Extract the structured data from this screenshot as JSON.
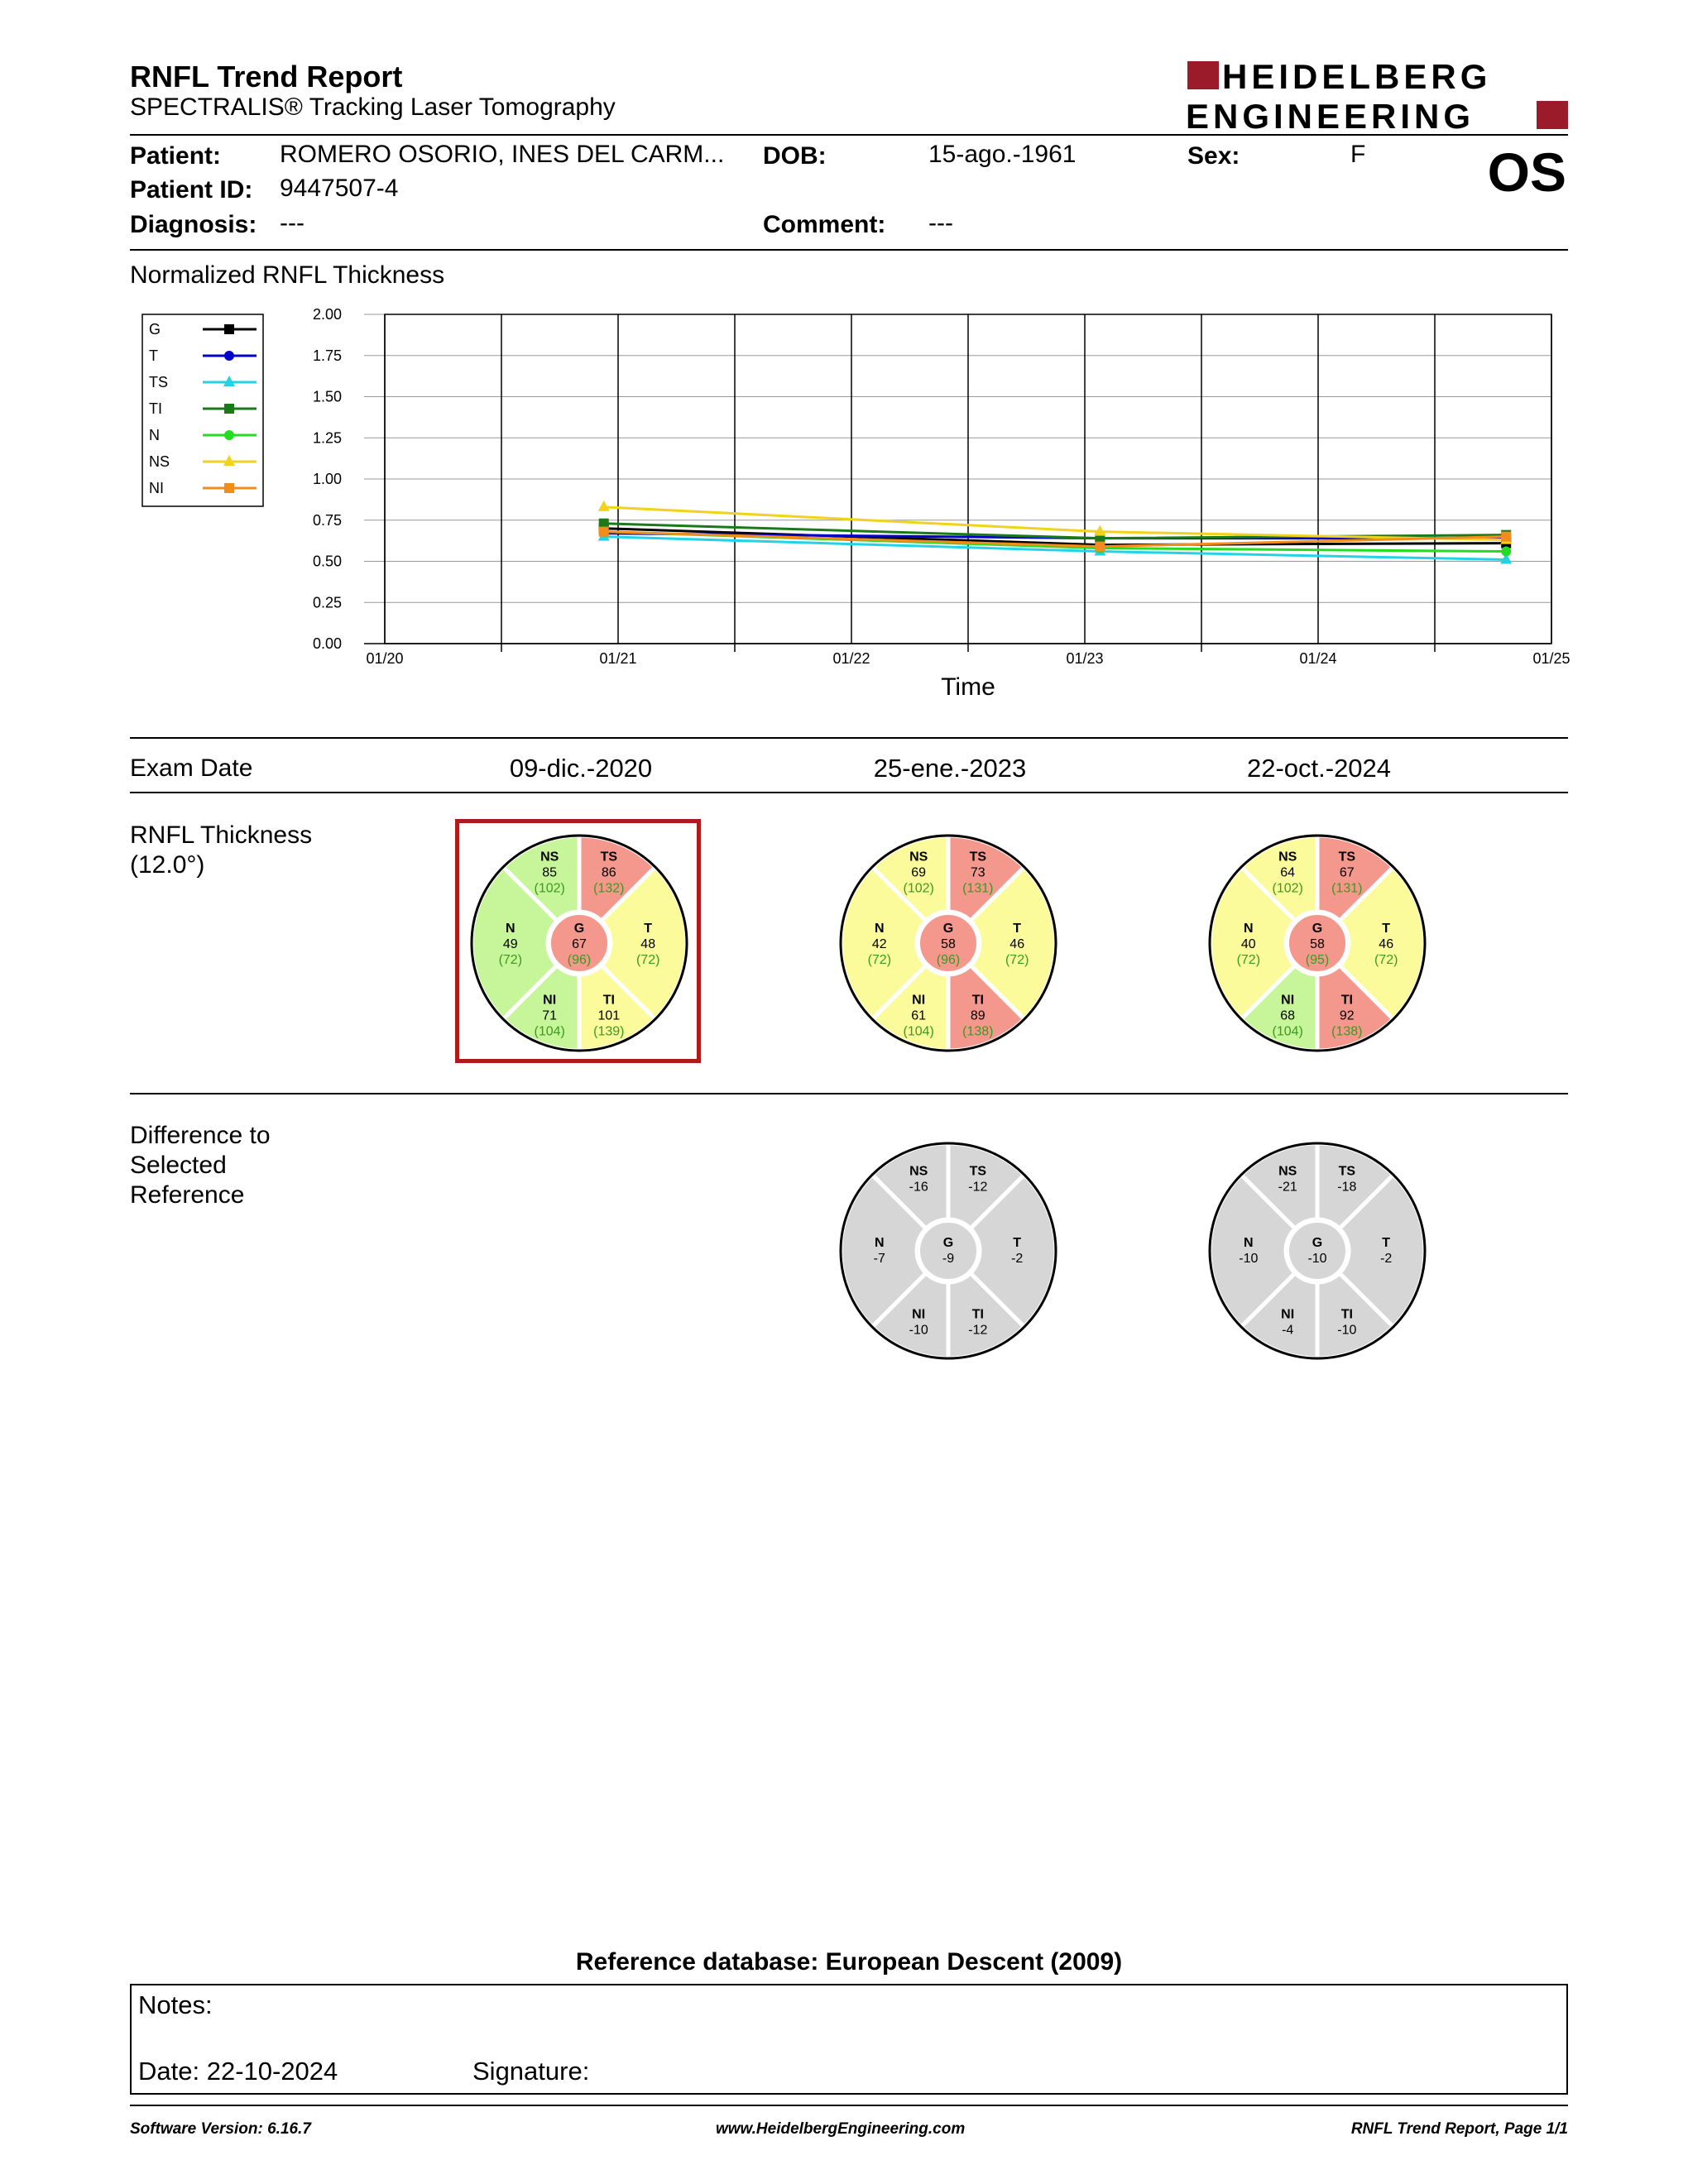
{
  "header": {
    "title": "RNFL Trend Report",
    "subtitle": "SPECTRALIS® Tracking Laser Tomography",
    "logo_line1": "HEIDELBERG",
    "logo_line2": "ENGINEERING",
    "logo_color": "#9b1b2b",
    "eye": "OS"
  },
  "patient": {
    "patient_label": "Patient:",
    "patient_value": "ROMERO OSORIO, INES DEL CARM...",
    "id_label": "Patient ID:",
    "id_value": "9447507-4",
    "diagnosis_label": "Diagnosis:",
    "diagnosis_value": "---",
    "dob_label": "DOB:",
    "dob_value": "15-ago.-1961",
    "comment_label": "Comment:",
    "comment_value": "---",
    "sex_label": "Sex:",
    "sex_value": "F"
  },
  "chart_title": "Normalized RNFL Thickness",
  "chart_data": {
    "type": "line",
    "title": "",
    "xlabel": "Time",
    "ylabel": "",
    "x_ticks": [
      "01/20",
      "01/21",
      "01/22",
      "01/23",
      "01/24",
      "01/25"
    ],
    "y_ticks": [
      "0.00",
      "0.25",
      "0.50",
      "0.75",
      "1.00",
      "1.25",
      "1.50",
      "1.75",
      "2.00"
    ],
    "ylim": [
      0,
      2
    ],
    "xlim": [
      "2020-01-01",
      "2025-01-01"
    ],
    "x": [
      "2020-12-09",
      "2023-01-25",
      "2024-10-22"
    ],
    "grid": true,
    "legend_position": "top-left",
    "series": [
      {
        "name": "G",
        "color": "#000000",
        "marker": "square",
        "values": [
          0.7,
          0.6,
          0.61
        ]
      },
      {
        "name": "T",
        "color": "#0000cc",
        "marker": "circle",
        "values": [
          0.67,
          0.64,
          0.64
        ]
      },
      {
        "name": "TS",
        "color": "#22d3e6",
        "marker": "triangle",
        "values": [
          0.65,
          0.56,
          0.51
        ]
      },
      {
        "name": "TI",
        "color": "#1a7a1a",
        "marker": "square",
        "values": [
          0.73,
          0.64,
          0.66
        ]
      },
      {
        "name": "N",
        "color": "#22dd22",
        "marker": "circle",
        "values": [
          0.68,
          0.58,
          0.56
        ]
      },
      {
        "name": "NS",
        "color": "#f2d21a",
        "marker": "triangle",
        "values": [
          0.83,
          0.68,
          0.63
        ]
      },
      {
        "name": "NI",
        "color": "#f28c1a",
        "marker": "square",
        "values": [
          0.68,
          0.59,
          0.65
        ]
      }
    ]
  },
  "exam": {
    "label": "Exam Date",
    "dates": [
      "09-dic.-2020",
      "25-ene.-2023",
      "22-oct.-2024"
    ]
  },
  "thickness": {
    "label1": "RNFL Thickness",
    "label2": "(12.0°)",
    "exams": [
      {
        "NS": [
          "85",
          "(102)"
        ],
        "TS": [
          "86",
          "(132)"
        ],
        "T": [
          "48",
          "(72)"
        ],
        "TI": [
          "101",
          "(139)"
        ],
        "NI": [
          "71",
          "(104)"
        ],
        "N": [
          "49",
          "(72)"
        ],
        "G": [
          "67",
          "(96)"
        ],
        "colors": {
          "NS": "#c7f59a",
          "TS": "#f4978d",
          "T": "#fbfb9b",
          "TI": "#fbfb9b",
          "NI": "#c7f59a",
          "N": "#c7f59a",
          "G": "#f4978d"
        }
      },
      {
        "NS": [
          "69",
          "(102)"
        ],
        "TS": [
          "73",
          "(131)"
        ],
        "T": [
          "46",
          "(72)"
        ],
        "TI": [
          "89",
          "(138)"
        ],
        "NI": [
          "61",
          "(104)"
        ],
        "N": [
          "42",
          "(72)"
        ],
        "G": [
          "58",
          "(96)"
        ],
        "colors": {
          "NS": "#fbfb9b",
          "TS": "#f4978d",
          "T": "#fbfb9b",
          "TI": "#f4978d",
          "NI": "#fbfb9b",
          "N": "#fbfb9b",
          "G": "#f4978d"
        }
      },
      {
        "NS": [
          "64",
          "(102)"
        ],
        "TS": [
          "67",
          "(131)"
        ],
        "T": [
          "46",
          "(72)"
        ],
        "TI": [
          "92",
          "(138)"
        ],
        "NI": [
          "68",
          "(104)"
        ],
        "N": [
          "40",
          "(72)"
        ],
        "G": [
          "58",
          "(95)"
        ],
        "colors": {
          "NS": "#fbfb9b",
          "TS": "#f4978d",
          "T": "#fbfb9b",
          "TI": "#f4978d",
          "NI": "#c7f59a",
          "N": "#fbfb9b",
          "G": "#f4978d"
        }
      }
    ],
    "selected_color": "#b01a1a"
  },
  "difference": {
    "label1": "Difference to",
    "label2": "Selected",
    "label3": "Reference",
    "exams": [
      {
        "NS": "-16",
        "TS": "-12",
        "T": "-2",
        "TI": "-12",
        "NI": "-10",
        "N": "-7",
        "G": "-9"
      },
      {
        "NS": "-21",
        "TS": "-18",
        "T": "-2",
        "TI": "-10",
        "NI": "-4",
        "N": "-10",
        "G": "-10"
      }
    ]
  },
  "reference_db": "Reference database: European Descent (2009)",
  "notes": {
    "notes_label": "Notes:",
    "date_label": "Date: 22-10-2024",
    "signature_label": "Signature:"
  },
  "footer": {
    "software": "Software Version: 6.16.7",
    "website": "www.HeidelbergEngineering.com",
    "page": "RNFL Trend Report, Page 1/1"
  }
}
